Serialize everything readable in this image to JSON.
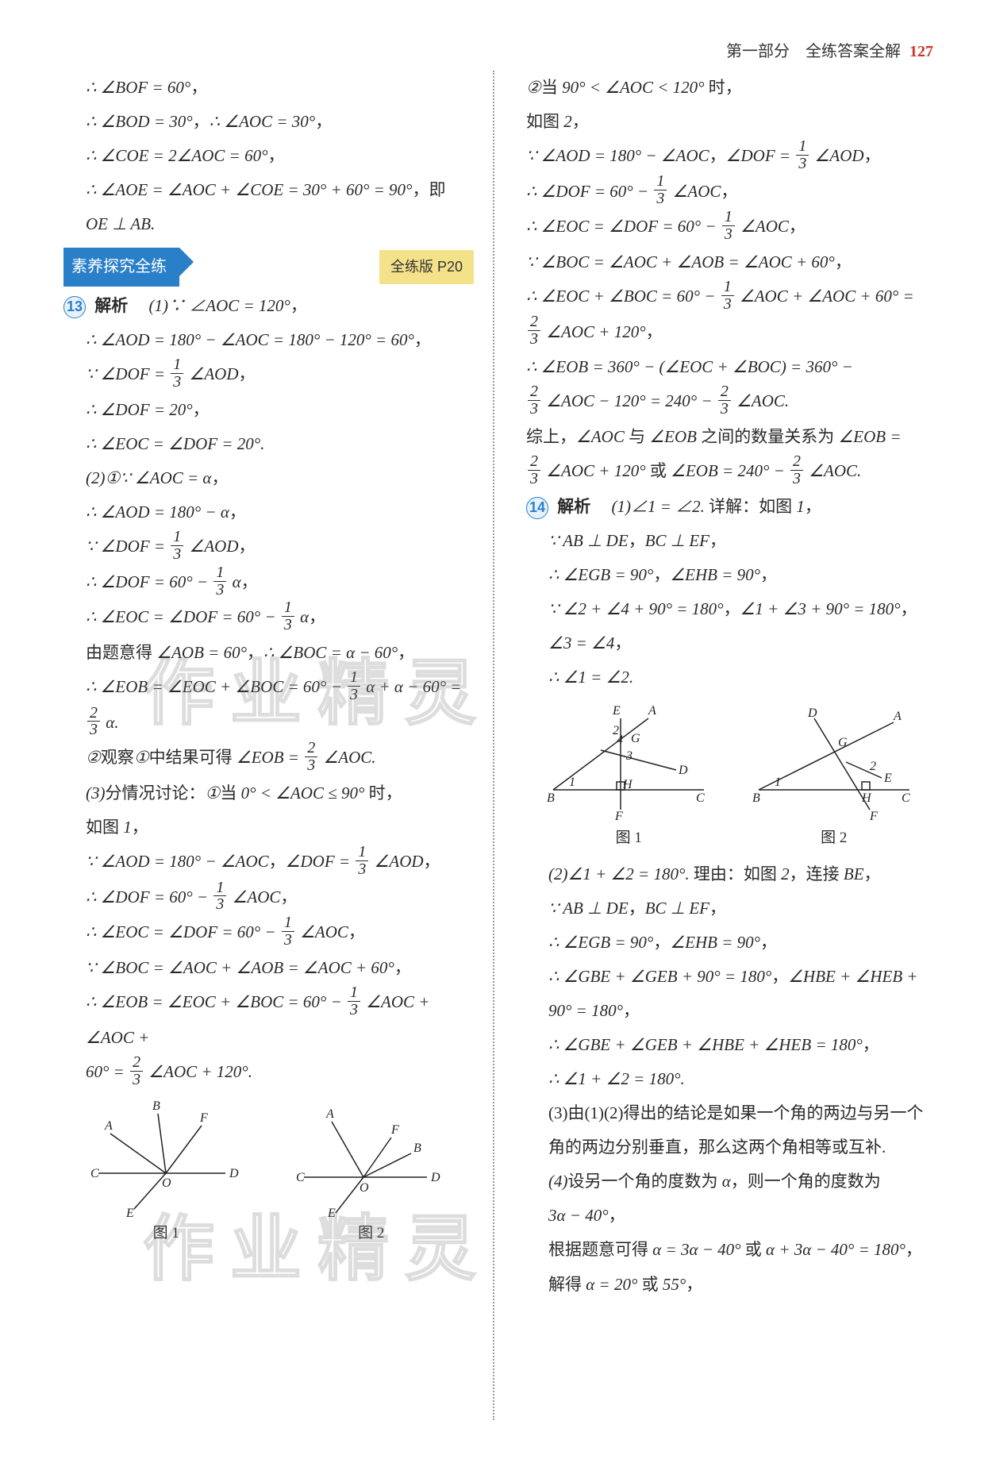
{
  "header": {
    "part": "第一部分　全练答案全解",
    "page": "127"
  },
  "banner": {
    "title": "素养探究全练",
    "ref": "全练版 P20"
  },
  "watermark": "作业精灵",
  "q13": {
    "label": "13",
    "analysis": "解析",
    "preamble": [
      "∴ ∠BOF = 60°，",
      "∴ ∠BOD = 30°，∴ ∠AOC = 30°，",
      "∴ ∠COE = 2∠AOC = 60°，",
      "∴ ∠AOE = ∠AOC + ∠COE = 30° + 60° = 90°，即",
      "OE ⊥ AB."
    ],
    "part1_head": "(1)∵ ∠AOC = 120°，",
    "part1": [
      "∴ ∠AOD = 180° − ∠AOC = 180° − 120° = 60°，",
      "∵ ∠DOF = {1/3} ∠AOD，",
      "∴ ∠DOF = 20°，",
      "∴ ∠EOC = ∠DOF = 20°."
    ],
    "part2_head": "(2)①∵ ∠AOC = α，",
    "part2": [
      "∴ ∠AOD = 180° − α，",
      "∵ ∠DOF = {1/3} ∠AOD，",
      "∴ ∠DOF = 60° − {1/3} α，",
      "∴ ∠EOC = ∠DOF = 60° − {1/3} α，",
      "由题意得 ∠AOB = 60°，∴ ∠BOC = α − 60°，",
      "∴ ∠EOB = ∠EOC + ∠BOC = 60° − {1/3} α + α − 60° = {2/3} α.",
      "②观察①中结果可得 ∠EOB = {2/3} ∠AOC."
    ],
    "part3_head": "(3)分情况讨论：①当 0° < ∠AOC ≤ 90° 时，",
    "part3": [
      "如图 1，",
      "∵ ∠AOD = 180° − ∠AOC，∠DOF = {1/3} ∠AOD，",
      "∴ ∠DOF = 60° − {1/3} ∠AOC，",
      "∴ ∠EOC = ∠DOF = 60° − {1/3} ∠AOC，",
      "∵ ∠BOC = ∠AOC + ∠AOB = ∠AOC + 60°，",
      "∴ ∠EOB = ∠EOC + ∠BOC = 60° − {1/3} ∠AOC + ∠AOC +",
      "60° = {2/3} ∠AOC + 120°."
    ],
    "fig1_label": "图 1",
    "fig2_label": "图 2"
  },
  "right": {
    "case2_head": "②当 90° < ∠AOC < 120° 时，",
    "case2": [
      "如图 2，",
      "∵ ∠AOD = 180° − ∠AOC，∠DOF = {1/3} ∠AOD，",
      "∴ ∠DOF = 60° − {1/3} ∠AOC，",
      "∴ ∠EOC = ∠DOF = 60° − {1/3} ∠AOC，",
      "∵ ∠BOC = ∠AOC + ∠AOB = ∠AOC + 60°，",
      "∴ ∠EOC + ∠BOC = 60° − {1/3} ∠AOC + ∠AOC + 60° =",
      "{2/3} ∠AOC + 120°，",
      "∴ ∠EOB = 360° − (∠EOC + ∠BOC) = 360° −",
      "{2/3} ∠AOC − 120° = 240° − {2/3} ∠AOC.",
      "综上，∠AOC 与 ∠EOB 之间的数量关系为 ∠EOB =",
      "{2/3} ∠AOC + 120° 或 ∠EOB = 240° − {2/3} ∠AOC."
    ]
  },
  "q14": {
    "label": "14",
    "analysis": "解析",
    "part1_head": "(1)∠1 = ∠2. 详解：如图 1，",
    "part1": [
      "∵ AB ⊥ DE，BC ⊥ EF，",
      "∴ ∠EGB = 90°，∠EHB = 90°，",
      "∵ ∠2 + ∠4 + 90° = 180°，∠1 + ∠3 + 90° = 180°，",
      "∠3 = ∠4，",
      "∴ ∠1 = ∠2."
    ],
    "fig1_label": "图 1",
    "fig2_label": "图 2",
    "part2_head": "(2)∠1 + ∠2 = 180°. 理由：如图 2，连接 BE，",
    "part2": [
      "∵ AB ⊥ DE，BC ⊥ EF，",
      "∴ ∠EGB = 90°，∠EHB = 90°，",
      "∴ ∠GBE + ∠GEB + 90° = 180°，∠HBE + ∠HEB +",
      "90° = 180°，",
      "∴ ∠GBE + ∠GEB + ∠HBE + ∠HEB = 180°，",
      "∴ ∠1 + ∠2 = 180°."
    ],
    "part3": "(3)由(1)(2)得出的结论是如果一个角的两边与另一个角的两边分别垂直，那么这两个角相等或互补.",
    "part4_head": "(4)设另一个角的度数为 α，则一个角的度数为",
    "part4": [
      "3α − 40°，",
      "根据题意可得 α = 3α − 40° 或 α + 3α − 40° = 180°，",
      "解得 α = 20° 或 55°，"
    ]
  }
}
